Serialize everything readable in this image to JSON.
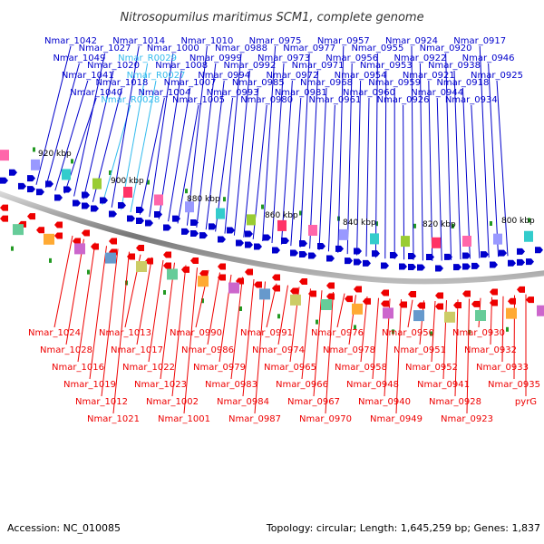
{
  "title": "Nitrosopumilus maritimus SCM1, complete genome",
  "accession": "Accession: NC_010085",
  "summary": "Topology: circular; Length: 1,645,259 bp; Genes: 1,837",
  "kbp_labels": [
    "920 kbp",
    "900 kbp",
    "880 kbp",
    "860 kbp",
    "840 kbp",
    "820 kbp",
    "800 kbp"
  ],
  "top_labels": [
    "Nmar_1042",
    "Nmar_1049",
    "Nmar_1041",
    "Nmar_1040",
    "Nmar_1027",
    "Nmar_1020",
    "Nmar_1018",
    "Nmar_R0028",
    "Nmar_1014",
    "Nmar_R0029",
    "Nmar_R0027",
    "Nmar_1004",
    "Nmar_1000",
    "Nmar_1008",
    "Nmar_1007",
    "Nmar_1005",
    "Nmar_1010",
    "Nmar_0999",
    "Nmar_0994",
    "Nmar_0993",
    "Nmar_0988",
    "Nmar_0992",
    "Nmar_0985",
    "Nmar_0980",
    "Nmar_0975",
    "Nmar_0973",
    "Nmar_0972",
    "Nmar_0981",
    "Nmar_0977",
    "Nmar_0971",
    "Nmar_0968",
    "Nmar_0961",
    "Nmar_0957",
    "Nmar_0956",
    "Nmar_0954",
    "Nmar_0960",
    "Nmar_0955",
    "Nmar_0953",
    "Nmar_0959",
    "Nmar_0926",
    "Nmar_0924",
    "Nmar_0922",
    "Nmar_0921",
    "Nmar_0944",
    "Nmar_0920",
    "Nmar_0938",
    "Nmar_0918",
    "Nmar_0934",
    "Nmar_0917",
    "Nmar_0946",
    "Nmar_0925"
  ],
  "bottom_labels": [
    "Nmar_1024",
    "Nmar_1028",
    "Nmar_1016",
    "Nmar_1019",
    "Nmar_1012",
    "Nmar_1021",
    "Nmar_1013",
    "Nmar_1017",
    "Nmar_1022",
    "Nmar_1023",
    "Nmar_1002",
    "Nmar_1001",
    "Nmar_0990",
    "Nmar_0986",
    "Nmar_0979",
    "Nmar_0983",
    "Nmar_0984",
    "Nmar_0987",
    "Nmar_0991",
    "Nmar_0974",
    "Nmar_0965",
    "Nmar_0966",
    "Nmar_0967",
    "Nmar_0970",
    "Nmar_0976",
    "Nmar_0978",
    "Nmar_0958",
    "Nmar_0948",
    "Nmar_0940",
    "Nmar_0949",
    "Nmar_0950",
    "Nmar_0951",
    "Nmar_0952",
    "Nmar_0941",
    "Nmar_0928",
    "Nmar_0923",
    "Nmar_0930",
    "Nmar_0932",
    "Nmar_0933",
    "Nmar_0935",
    "pyrG"
  ],
  "colors": {
    "forward": "#0000cc",
    "reverse": "#ee0000",
    "rna": "#33bbee",
    "backbone": "#888888",
    "gc_tick": "#229922"
  }
}
